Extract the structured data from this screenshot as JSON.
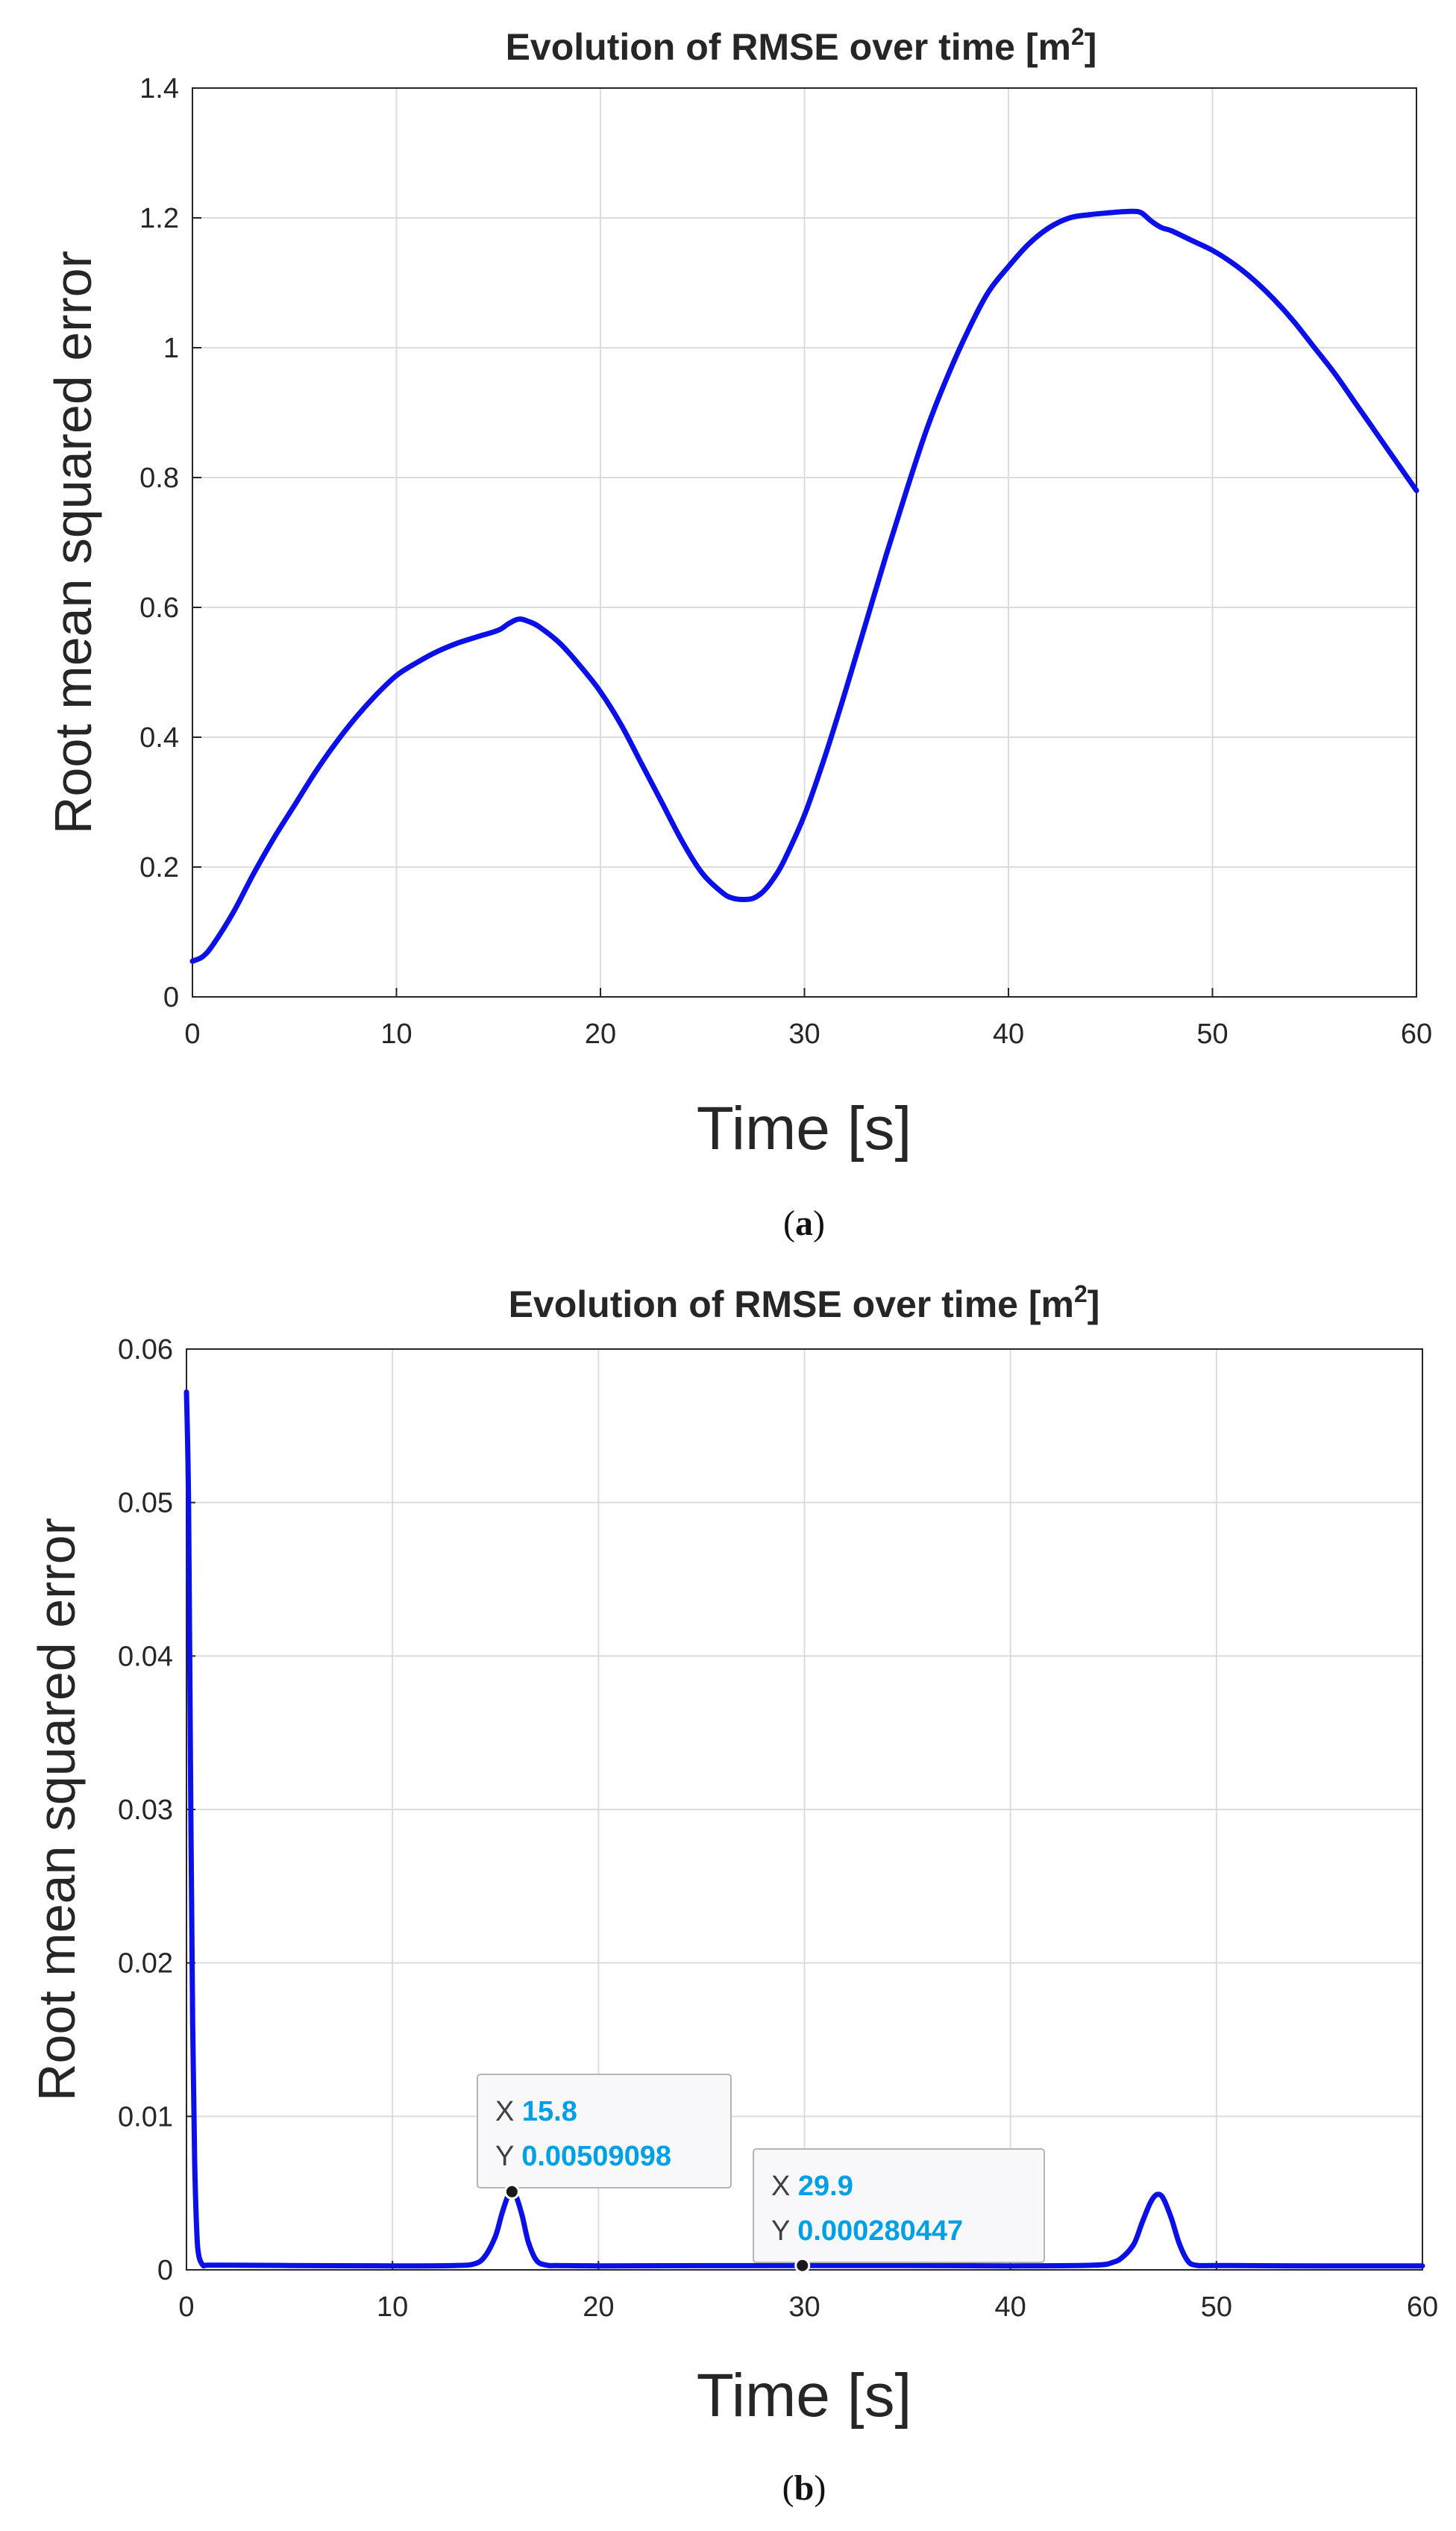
{
  "chart_data": [
    {
      "type": "line",
      "panel_label": "a",
      "title": "Evolution of RMSE over time [m",
      "title_superscript": "2",
      "title_suffix": "]",
      "xlabel": "Time [s]",
      "ylabel": "Root mean squared error",
      "xlim": [
        0,
        60
      ],
      "ylim": [
        0,
        1.4
      ],
      "xticks": [
        "0",
        "10",
        "20",
        "30",
        "40",
        "50",
        "60"
      ],
      "yticks": [
        "0",
        "0.2",
        "0.4",
        "0.6",
        "0.8",
        "1",
        "1.2",
        "1.4"
      ],
      "grid": true,
      "color": "#0b10e8",
      "x": [
        0,
        0.5,
        1,
        2,
        3,
        4,
        5,
        6,
        7,
        8,
        9,
        10,
        11,
        12,
        13,
        14,
        15,
        15.5,
        16,
        16.5,
        17,
        18,
        19,
        20,
        21,
        22,
        23,
        24,
        25,
        26,
        26.5,
        27,
        27.5,
        28,
        28.5,
        29,
        30,
        31,
        32,
        33,
        34,
        35,
        36,
        37,
        38,
        39,
        40,
        41,
        42,
        43,
        44,
        45,
        46,
        46.5,
        47,
        47.5,
        48,
        49,
        50,
        51,
        52,
        53,
        54,
        55,
        56,
        57,
        58,
        59,
        60
      ],
      "y": [
        0.055,
        0.062,
        0.08,
        0.13,
        0.19,
        0.245,
        0.295,
        0.345,
        0.39,
        0.43,
        0.465,
        0.495,
        0.515,
        0.532,
        0.545,
        0.555,
        0.565,
        0.575,
        0.582,
        0.578,
        0.57,
        0.545,
        0.51,
        0.47,
        0.42,
        0.36,
        0.3,
        0.24,
        0.19,
        0.16,
        0.152,
        0.15,
        0.152,
        0.163,
        0.183,
        0.21,
        0.28,
        0.37,
        0.47,
        0.575,
        0.68,
        0.78,
        0.875,
        0.955,
        1.025,
        1.085,
        1.125,
        1.16,
        1.185,
        1.2,
        1.205,
        1.208,
        1.21,
        1.208,
        1.195,
        1.185,
        1.18,
        1.165,
        1.15,
        1.13,
        1.105,
        1.075,
        1.04,
        1.0,
        0.96,
        0.915,
        0.87,
        0.825,
        0.78
      ]
    },
    {
      "type": "line",
      "panel_label": "b",
      "title": "Evolution of RMSE over time [m",
      "title_superscript": "2",
      "title_suffix": "]",
      "xlabel": "Time [s]",
      "ylabel": "Root mean squared error",
      "xlim": [
        0,
        60
      ],
      "ylim": [
        0,
        0.06
      ],
      "xticks": [
        "0",
        "10",
        "20",
        "30",
        "40",
        "50",
        "60"
      ],
      "yticks": [
        "0",
        "0.01",
        "0.02",
        "0.03",
        "0.04",
        "0.05",
        "0.06"
      ],
      "grid": true,
      "color": "#0b10e8",
      "x": [
        0,
        0.1,
        0.2,
        0.3,
        0.4,
        0.5,
        0.6,
        0.8,
        1,
        2,
        5,
        10,
        13,
        14,
        14.5,
        15,
        15.3,
        15.6,
        15.8,
        16,
        16.3,
        16.6,
        17,
        17.5,
        18,
        20,
        25,
        29.9,
        35,
        40,
        44,
        45,
        45.5,
        46,
        46.4,
        46.8,
        47.1,
        47.4,
        47.8,
        48.2,
        48.6,
        49,
        50,
        55,
        60
      ],
      "y": [
        0.0572,
        0.05,
        0.032,
        0.016,
        0.007,
        0.0025,
        0.0009,
        0.0003,
        0.0003,
        0.0003,
        0.00028,
        0.00026,
        0.00028,
        0.0004,
        0.0009,
        0.0022,
        0.0036,
        0.0048,
        0.00509098,
        0.0048,
        0.0035,
        0.0018,
        0.0006,
        0.0003,
        0.00028,
        0.00026,
        0.00027,
        0.000280447,
        0.00028,
        0.00026,
        0.0003,
        0.0005,
        0.0009,
        0.0017,
        0.0031,
        0.0044,
        0.0049,
        0.0047,
        0.0034,
        0.0017,
        0.0006,
        0.0003,
        0.00028,
        0.00026,
        0.00026
      ],
      "annotations": [
        {
          "x": 15.8,
          "y": 0.00509098,
          "x_key": "X",
          "x_text": "15.8",
          "y_key": "Y",
          "y_text": "0.00509098"
        },
        {
          "x": 29.9,
          "y": 0.000280447,
          "x_key": "X",
          "x_text": "29.9",
          "y_key": "Y",
          "y_text": "0.000280447"
        }
      ],
      "annotation_value_color": "#00a0e6"
    }
  ]
}
